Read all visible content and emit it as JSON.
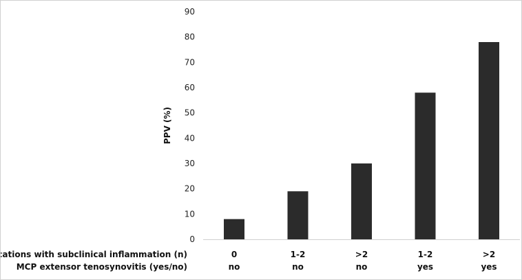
{
  "chart_data": {
    "type": "bar",
    "title": "",
    "ylabel": "PPV (%)",
    "xlabel": "",
    "ylim": [
      0,
      90
    ],
    "yticks": [
      0,
      10,
      20,
      30,
      40,
      50,
      60,
      70,
      80,
      90
    ],
    "grid": false,
    "bar_color": "#2b2b2b",
    "category_rows": [
      {
        "label": "locations with subclinical inflammation (n)",
        "values": [
          "0",
          "1-2",
          ">2",
          "1-2",
          ">2"
        ]
      },
      {
        "label": "MCP extensor tenosynovitis (yes/no)",
        "values": [
          "no",
          "no",
          "no",
          "yes",
          "yes"
        ]
      }
    ],
    "values": [
      8,
      19,
      30,
      58,
      78
    ]
  }
}
